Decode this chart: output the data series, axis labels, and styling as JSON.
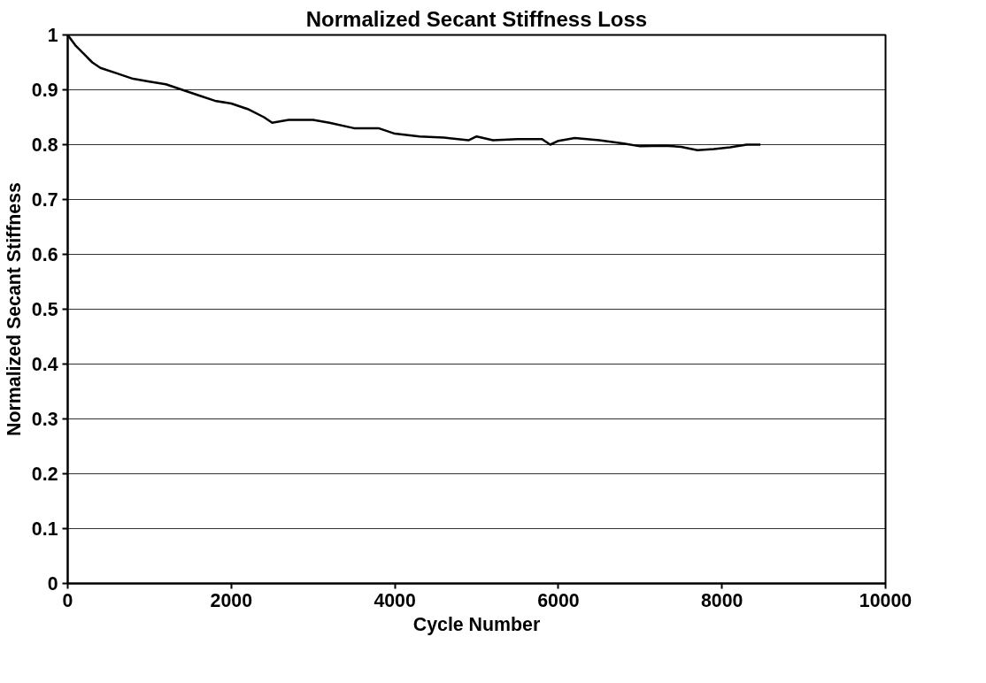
{
  "chart_data": {
    "type": "line",
    "title": "Normalized Secant Stiffness Loss",
    "xlabel": "Cycle Number",
    "ylabel": "Normalized Secant Stiffness",
    "series": [
      {
        "color": "#000000",
        "x": [
          0,
          100,
          200,
          300,
          400,
          600,
          800,
          1000,
          1200,
          1400,
          1600,
          1800,
          2000,
          2200,
          2400,
          2500,
          2700,
          3000,
          3200,
          3500,
          3800,
          4000,
          4300,
          4600,
          4900,
          5000,
          5200,
          5500,
          5800,
          5900,
          6000,
          6200,
          6500,
          6800,
          7000,
          7300,
          7500,
          7700,
          7900,
          8100,
          8300,
          8470
        ],
        "values": [
          1.0,
          0.98,
          0.965,
          0.95,
          0.94,
          0.93,
          0.92,
          0.915,
          0.91,
          0.9,
          0.89,
          0.88,
          0.875,
          0.865,
          0.85,
          0.84,
          0.845,
          0.845,
          0.84,
          0.83,
          0.83,
          0.82,
          0.815,
          0.813,
          0.808,
          0.815,
          0.808,
          0.81,
          0.81,
          0.8,
          0.807,
          0.812,
          0.808,
          0.802,
          0.797,
          0.798,
          0.796,
          0.79,
          0.792,
          0.795,
          0.8,
          0.8
        ]
      }
    ],
    "xlim": [
      0,
      10000
    ],
    "xticks": [
      0,
      2000,
      4000,
      6000,
      8000,
      10000
    ],
    "ylim": [
      0,
      1
    ],
    "yticks": [
      0,
      0.1,
      0.2,
      0.3,
      0.4,
      0.5,
      0.6,
      0.7,
      0.8,
      0.9,
      1
    ],
    "grid": "y",
    "marker": "none",
    "line_style": "solid"
  }
}
